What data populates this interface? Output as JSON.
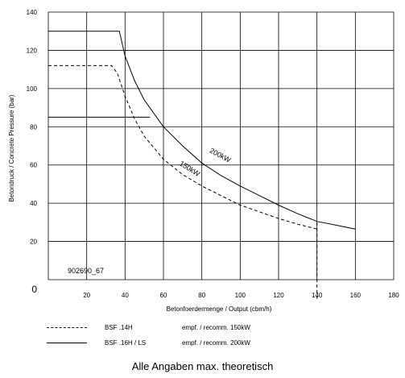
{
  "chart_data": {
    "type": "line",
    "xlabel": "Betonfoerdermenge / Output  (cbm/h)",
    "ylabel": "Betondruck / Concrete Pressure (bar)",
    "xlim": [
      0,
      180
    ],
    "ylim": [
      0,
      140
    ],
    "x_ticks": [
      20,
      40,
      60,
      80,
      100,
      120,
      140,
      160,
      180
    ],
    "y_ticks": [
      20,
      40,
      60,
      80,
      100,
      120,
      140
    ],
    "origin_label": "0",
    "grid": true,
    "annotation": "902690_67",
    "curve_labels": [
      "150kW",
      "200kW"
    ],
    "series": [
      {
        "key": "bsf14h",
        "style": "dashed",
        "color": "#000000",
        "points": [
          [
            0,
            112
          ],
          [
            33,
            112
          ],
          [
            36,
            108
          ],
          [
            40,
            96
          ],
          [
            45,
            84
          ],
          [
            50,
            75
          ],
          [
            60,
            63
          ],
          [
            70,
            55
          ],
          [
            80,
            49
          ],
          [
            90,
            44
          ],
          [
            100,
            39
          ],
          [
            110,
            35.5
          ],
          [
            120,
            32
          ],
          [
            130,
            29
          ],
          [
            140,
            26.5
          ]
        ]
      },
      {
        "key": "bsf16h",
        "style": "solid",
        "color": "#000000",
        "points": [
          [
            0,
            130
          ],
          [
            37,
            130
          ],
          [
            40,
            117
          ],
          [
            45,
            104
          ],
          [
            50,
            94
          ],
          [
            60,
            80
          ],
          [
            70,
            70
          ],
          [
            80,
            61
          ],
          [
            90,
            54.5
          ],
          [
            100,
            49
          ],
          [
            110,
            44
          ],
          [
            120,
            39
          ],
          [
            130,
            34.5
          ],
          [
            140,
            30.5
          ],
          [
            150,
            28.5
          ],
          [
            160,
            26.5
          ]
        ]
      }
    ],
    "series_aux": [
      {
        "key": "bsf16h_hline",
        "style": "solid",
        "points": [
          [
            0,
            85
          ],
          [
            53,
            85
          ]
        ]
      },
      {
        "key": "bsf14h_drop",
        "style": "dashed",
        "points": [
          [
            140,
            30
          ],
          [
            140,
            -10
          ]
        ]
      }
    ]
  },
  "legend": [
    {
      "style": "dashed",
      "name": "BSF .14H",
      "desc": "empf. / recomm. 150kW"
    },
    {
      "style": "solid",
      "name": "BSF .16H / LS",
      "desc": "empf. / recomm. 200kW"
    }
  ],
  "caption": "Alle Angaben max. theoretisch"
}
